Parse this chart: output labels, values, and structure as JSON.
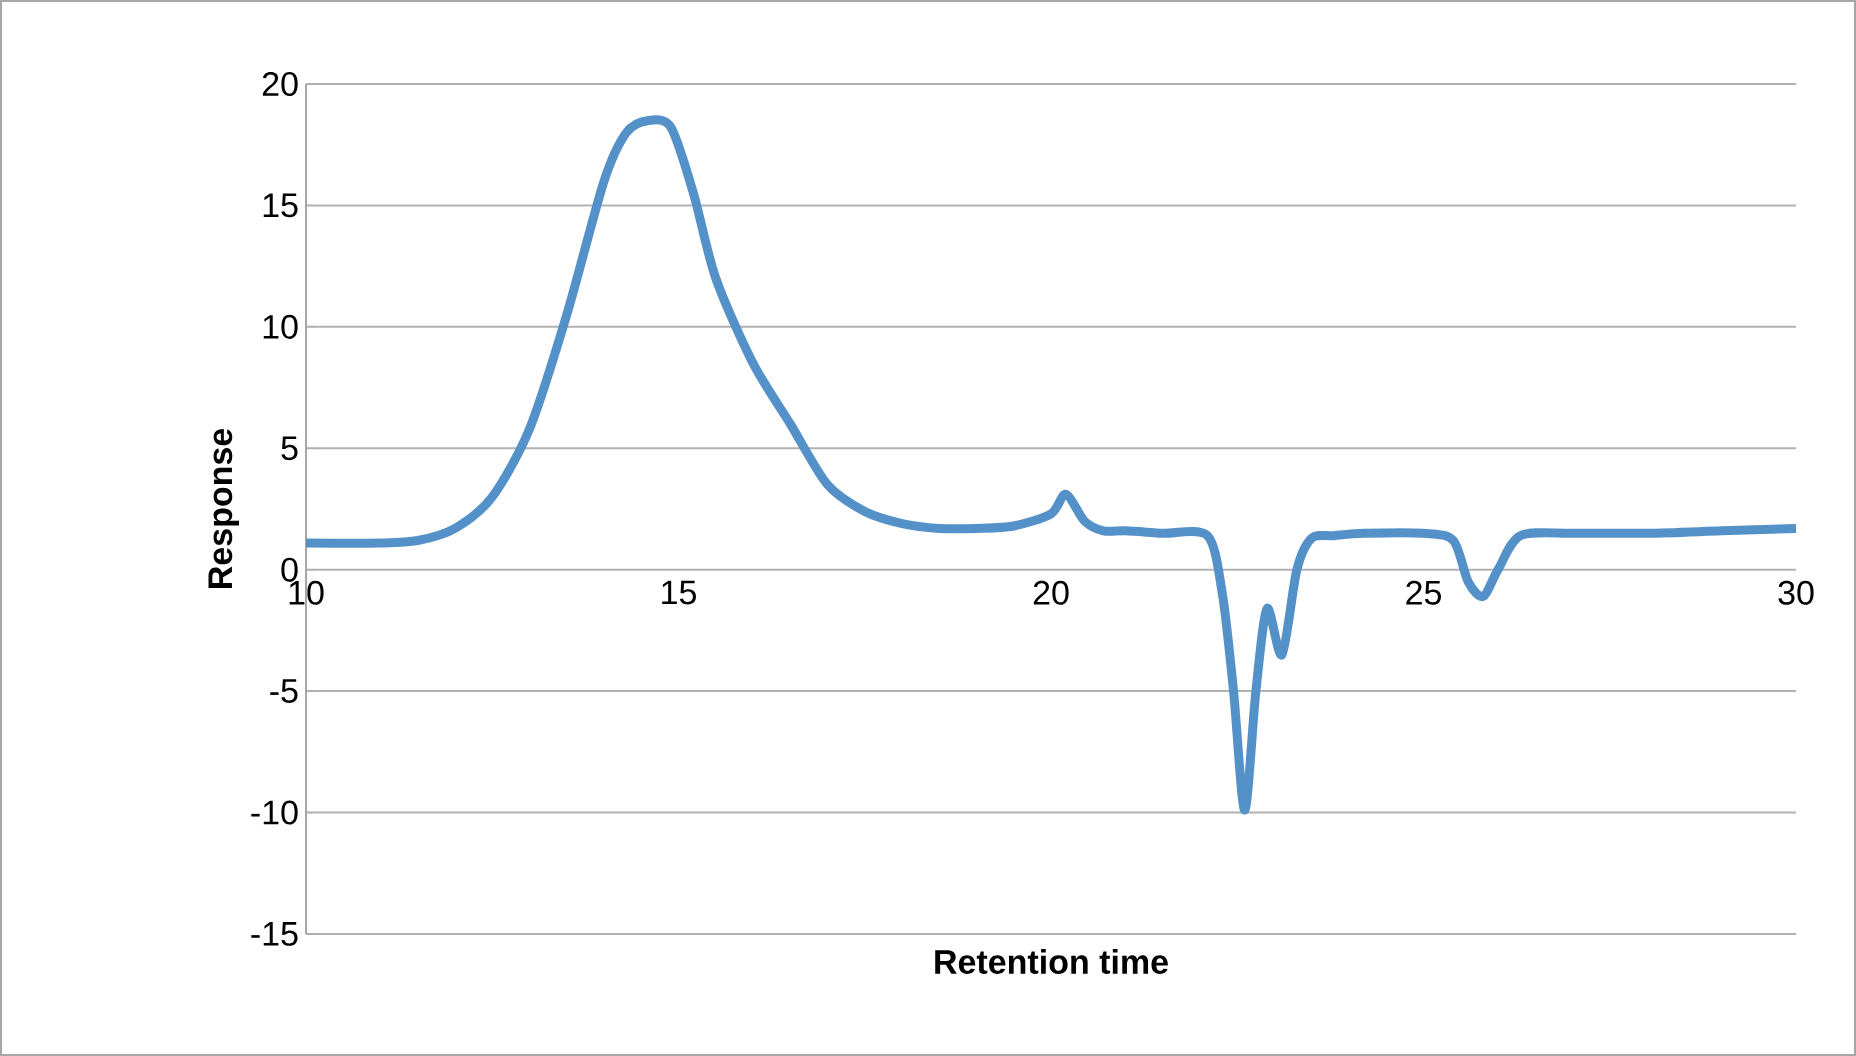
{
  "chart_data": {
    "type": "line",
    "xlabel": "Retention time",
    "ylabel": "Response",
    "xlim": [
      10,
      30
    ],
    "xticks": [
      10,
      15,
      20,
      25,
      30
    ],
    "ylim": [
      -15,
      20
    ],
    "yticks": [
      -15,
      -10,
      -5,
      0,
      5,
      10,
      15,
      20
    ],
    "grid": "y",
    "marker": "none",
    "line_style": "solid",
    "series": [
      {
        "color": "#5591c9",
        "x": [
          10,
          11,
          11.5,
          12,
          12.5,
          13,
          13.5,
          14,
          14.3,
          14.6,
          14.9,
          15.2,
          15.5,
          16,
          16.5,
          17,
          17.5,
          18,
          18.5,
          19,
          19.5,
          20,
          20.2,
          20.45,
          20.7,
          21,
          21.5,
          22.1,
          22.3,
          22.45,
          22.6,
          22.75,
          22.9,
          23.1,
          23.3,
          23.5,
          23.8,
          24.2,
          25,
          25.4,
          25.6,
          25.8,
          26,
          26.3,
          27,
          28,
          29,
          30
        ],
        "values": [
          1.1,
          1.1,
          1.2,
          1.7,
          3,
          5.8,
          10.5,
          16,
          18,
          18.5,
          18.2,
          15.5,
          12,
          8.5,
          6,
          3.5,
          2.4,
          1.9,
          1.7,
          1.7,
          1.8,
          2.3,
          3.1,
          2,
          1.6,
          1.6,
          1.5,
          1.4,
          -1,
          -5,
          -9.9,
          -5,
          -1.6,
          -3.5,
          0,
          1.3,
          1.4,
          1.5,
          1.5,
          1.2,
          -0.5,
          -1.1,
          0,
          1.4,
          1.5,
          1.5,
          1.6,
          1.7
        ]
      }
    ]
  }
}
